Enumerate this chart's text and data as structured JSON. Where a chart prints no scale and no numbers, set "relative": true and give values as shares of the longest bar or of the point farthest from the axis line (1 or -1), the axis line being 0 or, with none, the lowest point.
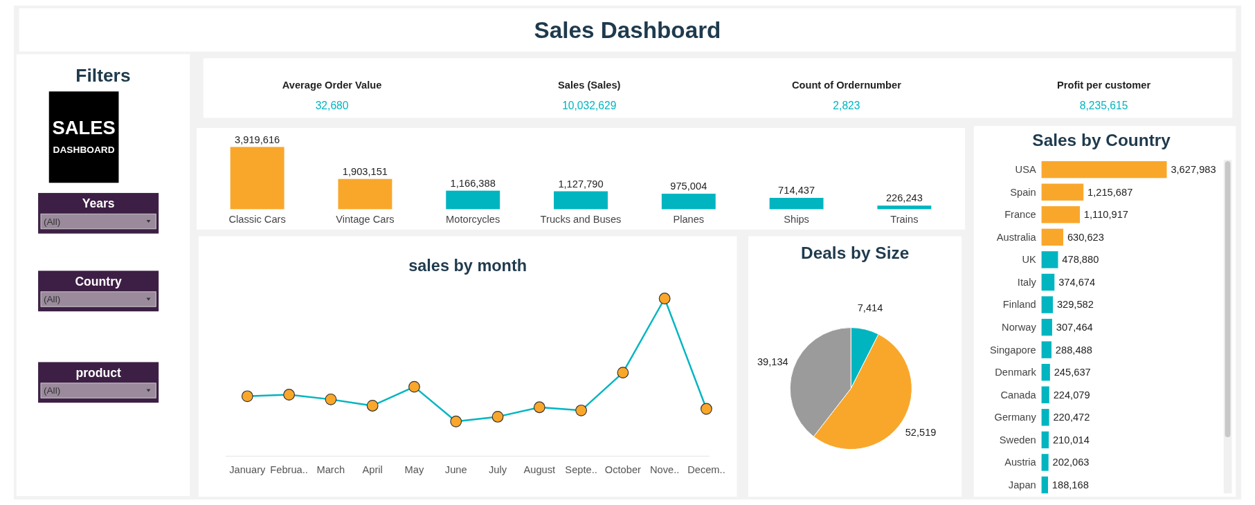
{
  "chart_data": [
    {
      "type": "other",
      "title": "Sales Dashboard"
    },
    {
      "type": "other",
      "title": "Filters",
      "annotations": [
        "SALES",
        "DASHBOARD",
        "Years",
        "(All)",
        "Country",
        "(All)",
        "product",
        "(All)"
      ]
    },
    {
      "type": "other",
      "annotations": [
        "Average Order Value",
        "32,680",
        "Sales (Sales)",
        "10,032,629",
        "Count of Ordernumber",
        "2,823",
        "Profit per customer",
        "8,235,615"
      ]
    },
    {
      "type": "bar",
      "categories": [
        "Classic Cars",
        "Vintage Cars",
        "Motorcycles",
        "Trucks and Buses",
        "Planes",
        "Ships",
        "Trains"
      ],
      "values": [
        3919616,
        1903151,
        1166388,
        1127790,
        975004,
        714437,
        226243
      ],
      "value_labels": [
        "3,919,616",
        "1,903,151",
        "1,166,388",
        "1,127,790",
        "975,004",
        "714,437",
        "226,243"
      ],
      "colors": [
        "#f9a72b",
        "#f9a72b",
        "#00b5c0",
        "#00b5c0",
        "#00b5c0",
        "#00b5c0",
        "#00b5c0"
      ]
    },
    {
      "type": "line",
      "title": "sales by month",
      "relative": true,
      "marker": "circle",
      "categories": [
        "January",
        "Februa..",
        "March",
        "April",
        "May",
        "June",
        "July",
        "August",
        "Septe..",
        "October",
        "Nove..",
        "Decem.."
      ],
      "series": [
        {
          "color": "#00b5c0",
          "colors": [
            "#f9a72b",
            "#f9a72b",
            "#f9a72b",
            "#f9a72b",
            "#f9a72b",
            "#f9a72b",
            "#f9a72b",
            "#f9a72b",
            "#f9a72b",
            "#f9a72b",
            "#f9a72b",
            "#f9a72b"
          ],
          "values": [
            0.38,
            0.39,
            0.36,
            0.32,
            0.44,
            0.22,
            0.25,
            0.31,
            0.29,
            0.53,
            1,
            0.3
          ]
        }
      ]
    },
    {
      "type": "pie",
      "title": "Deals by Size",
      "categories": [
        null,
        null,
        null
      ],
      "values": [
        7414,
        52519,
        39134
      ],
      "value_labels": [
        "7,414",
        "52,519",
        "39,134"
      ],
      "colors": [
        "#00b5c0",
        "#f9a72b",
        "#9b9b9b"
      ]
    },
    {
      "type": "bar",
      "orientation": "horizontal",
      "title": "Sales by Country",
      "categories": [
        "USA",
        "Spain",
        "France",
        "Australia",
        "UK",
        "Italy",
        "Finland",
        "Norway",
        "Singapore",
        "Denmark",
        "Canada",
        "Germany",
        "Sweden",
        "Austria",
        "Japan"
      ],
      "values": [
        3627983,
        1215687,
        1110917,
        630623,
        478880,
        374674,
        329582,
        307464,
        288488,
        245637,
        224079,
        220472,
        210014,
        202063,
        188168
      ],
      "value_labels": [
        "3,627,983",
        "1,215,687",
        "1,110,917",
        "630,623",
        "478,880",
        "374,674",
        "329,582",
        "307,464",
        "288,488",
        "245,637",
        "224,079",
        "220,472",
        "210,014",
        "202,063",
        "188,168"
      ],
      "colors": [
        "#f9a72b",
        "#f9a72b",
        "#f9a72b",
        "#f9a72b",
        "#00b5c0",
        "#00b5c0",
        "#00b5c0",
        "#00b5c0",
        "#00b5c0",
        "#00b5c0",
        "#00b5c0",
        "#00b5c0",
        "#00b5c0",
        "#00b5c0",
        "#00b5c0"
      ]
    }
  ]
}
